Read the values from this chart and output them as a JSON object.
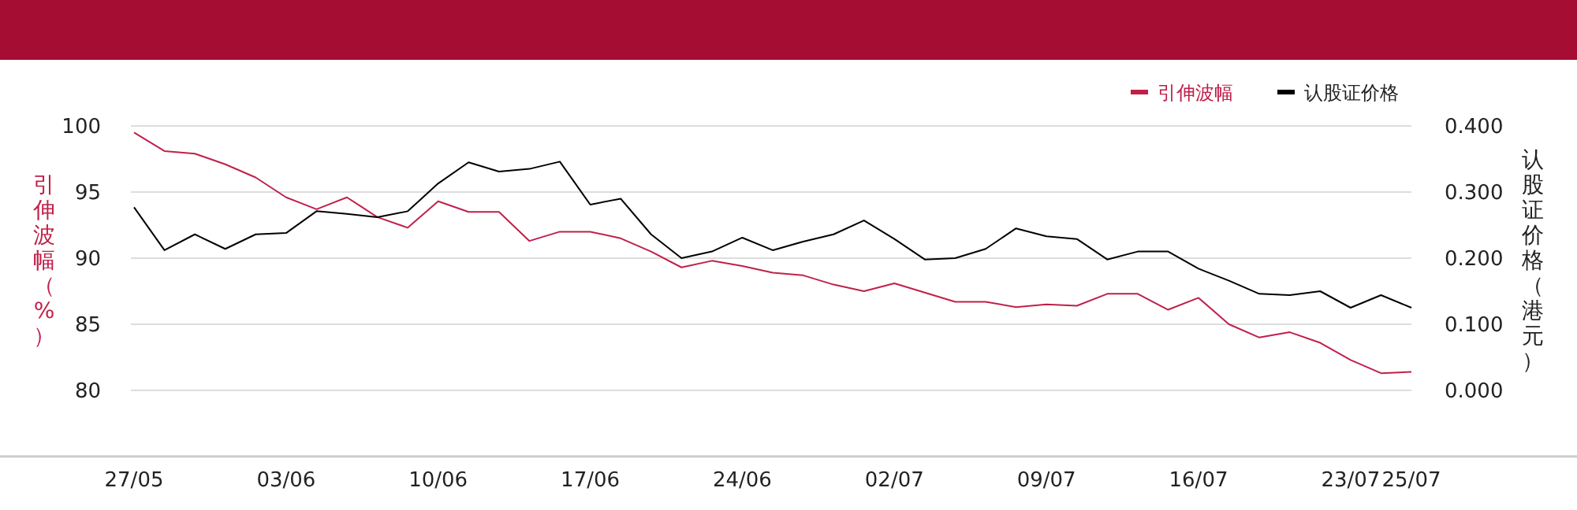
{
  "chart_data": {
    "type": "line",
    "ylabel": "引伸波幅（%）",
    "y2label": "认股证价格（港元）",
    "categories": [
      "27/05",
      null,
      null,
      null,
      null,
      "03/06",
      null,
      null,
      null,
      null,
      "10/06",
      null,
      null,
      null,
      null,
      "17/06",
      null,
      null,
      null,
      null,
      "24/06",
      null,
      null,
      null,
      null,
      "02/07",
      null,
      null,
      null,
      null,
      "09/07",
      null,
      null,
      null,
      null,
      "16/07",
      null,
      null,
      null,
      null,
      "23/07",
      null,
      "25/07"
    ],
    "series": [
      {
        "name": "引伸波幅",
        "color": "#c0204a",
        "values": [
          99.5,
          98.1,
          97.9,
          97.1,
          96.1,
          94.6,
          93.7,
          94.6,
          93.1,
          92.3,
          94.3,
          93.5,
          93.5,
          91.3,
          92.0,
          92.0,
          91.5,
          90.5,
          89.3,
          89.8,
          89.4,
          88.9,
          88.7,
          88.0,
          87.5,
          88.1,
          87.4,
          86.7,
          86.7,
          86.3,
          86.5,
          86.4,
          87.3,
          87.3,
          86.1,
          87.0,
          85.0,
          84.0,
          84.4,
          83.6,
          82.3,
          81.3,
          81.4
        ]
      },
      {
        "name": "认股证价格",
        "color": "#000000",
        "axis": "y2",
        "values": [
          0.277,
          0.212,
          0.236,
          0.214,
          0.236,
          0.238,
          0.271,
          0.267,
          0.262,
          0.271,
          0.313,
          0.345,
          0.331,
          0.335,
          0.346,
          0.281,
          0.29,
          0.236,
          0.2,
          0.21,
          0.231,
          0.212,
          0.225,
          0.236,
          0.257,
          0.229,
          0.198,
          0.2,
          0.214,
          0.245,
          0.233,
          0.229,
          0.198,
          0.21,
          0.21,
          0.184,
          0.166,
          0.146,
          0.144,
          0.15,
          0.125,
          0.144,
          0.125
        ]
      }
    ],
    "ylim": [
      75,
      100
    ],
    "yticks": [
      80,
      85,
      90,
      95,
      100
    ],
    "y2lim": [
      -0.1,
      0.4
    ],
    "y2ticks": [
      {
        "value": 0,
        "label": "0.000"
      },
      {
        "value": 0.1,
        "label": "0.100"
      },
      {
        "value": 0.2,
        "label": "0.200"
      },
      {
        "value": 0.3,
        "label": "0.300"
      },
      {
        "value": 0.4,
        "label": "0.400"
      }
    ],
    "grid": "y",
    "legend": "top right",
    "line_style": "solid",
    "marker": "none"
  }
}
